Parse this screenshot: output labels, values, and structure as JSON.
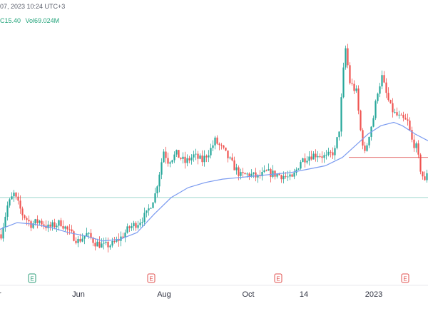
{
  "header": {
    "datetime_text": "07, 2023 10:24 UTC+3",
    "close_text": "C15.40",
    "volume_text": "Vol69.024M"
  },
  "colors": {
    "up": "#26a69a",
    "down": "#ef5350",
    "ma": "#7b9bf0",
    "hline_green": "#9fd8cf",
    "hline_red": "#e57373",
    "earnings_green": "#2e9e7a",
    "earnings_red": "#e0524f"
  },
  "chart_data": {
    "type": "candlestick",
    "x_tick_labels": [
      "r",
      "Jun",
      "Aug",
      "Oct",
      "14",
      "2023",
      "E"
    ],
    "earnings_markers": [
      {
        "letter": "E",
        "tone": "green"
      },
      {
        "letter": "E",
        "tone": "red"
      },
      {
        "letter": "E",
        "tone": "red"
      },
      {
        "letter": "E",
        "tone": "red"
      }
    ],
    "price_path": [
      [
        0,
        6.2
      ],
      [
        3,
        7.9
      ],
      [
        6,
        8.6
      ],
      [
        10,
        7.4
      ],
      [
        14,
        6.8
      ],
      [
        18,
        7.0
      ],
      [
        22,
        6.6
      ],
      [
        28,
        6.9
      ],
      [
        32,
        6.3
      ],
      [
        36,
        5.8
      ],
      [
        40,
        6.2
      ],
      [
        44,
        5.7
      ],
      [
        48,
        5.5
      ],
      [
        52,
        5.6
      ],
      [
        56,
        6.0
      ],
      [
        60,
        6.6
      ],
      [
        64,
        6.9
      ],
      [
        68,
        7.4
      ],
      [
        72,
        8.6
      ],
      [
        76,
        11.2
      ],
      [
        78,
        10.6
      ],
      [
        82,
        11.0
      ],
      [
        86,
        10.5
      ],
      [
        90,
        10.9
      ],
      [
        94,
        10.6
      ],
      [
        98,
        11.3
      ],
      [
        100,
        11.8
      ],
      [
        104,
        11.2
      ],
      [
        108,
        10.4
      ],
      [
        112,
        9.7
      ],
      [
        116,
        9.8
      ],
      [
        120,
        9.6
      ],
      [
        124,
        9.9
      ],
      [
        128,
        9.8
      ],
      [
        132,
        9.7
      ],
      [
        136,
        9.5
      ],
      [
        140,
        10.6
      ],
      [
        144,
        10.9
      ],
      [
        148,
        11.0
      ],
      [
        152,
        10.8
      ],
      [
        156,
        11.2
      ],
      [
        158,
        12.5
      ],
      [
        160,
        16.0
      ],
      [
        161,
        17.3
      ],
      [
        163,
        15.3
      ],
      [
        166,
        14.7
      ],
      [
        168,
        12.4
      ],
      [
        170,
        11.0
      ],
      [
        172,
        12.2
      ],
      [
        174,
        13.2
      ],
      [
        176,
        14.8
      ],
      [
        178,
        15.6
      ],
      [
        180,
        14.6
      ],
      [
        182,
        13.8
      ],
      [
        184,
        13.4
      ],
      [
        186,
        13.2
      ],
      [
        190,
        12.9
      ],
      [
        192,
        11.8
      ],
      [
        194,
        11.4
      ],
      [
        196,
        10.1
      ],
      [
        198,
        9.3
      ],
      [
        200,
        10.6
      ]
    ],
    "ma_path": [
      [
        0,
        6.5
      ],
      [
        8,
        6.9
      ],
      [
        16,
        6.8
      ],
      [
        24,
        6.6
      ],
      [
        32,
        6.3
      ],
      [
        40,
        6.1
      ],
      [
        48,
        5.8
      ],
      [
        56,
        5.9
      ],
      [
        64,
        6.3
      ],
      [
        72,
        7.4
      ],
      [
        80,
        8.4
      ],
      [
        88,
        9.0
      ],
      [
        96,
        9.3
      ],
      [
        104,
        9.5
      ],
      [
        112,
        9.6
      ],
      [
        120,
        9.7
      ],
      [
        128,
        9.8
      ],
      [
        136,
        9.9
      ],
      [
        144,
        10.1
      ],
      [
        152,
        10.3
      ],
      [
        160,
        10.8
      ],
      [
        166,
        11.5
      ],
      [
        172,
        12.2
      ],
      [
        178,
        12.7
      ],
      [
        184,
        12.9
      ],
      [
        188,
        12.7
      ],
      [
        194,
        12.2
      ],
      [
        200,
        11.8
      ]
    ],
    "horizontal_lines": [
      {
        "price": 8.4,
        "color": "green",
        "from_index": 0,
        "to_index": 200
      },
      {
        "price": 10.8,
        "color": "red",
        "from_index": 163,
        "to_index": 200
      }
    ],
    "grid": false,
    "legend": "none"
  }
}
